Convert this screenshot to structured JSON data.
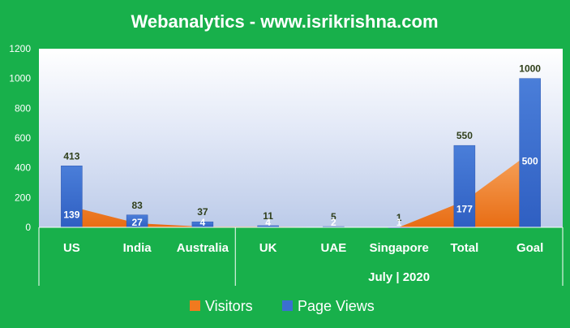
{
  "chart_data": {
    "type": "bar",
    "title": "Webanalytics  - www.isrikrishna.com",
    "categories": [
      "US",
      "India",
      "Australia",
      "UK",
      "UAE",
      "Singapore",
      "Total",
      "Goal"
    ],
    "group_label": "July | 2020",
    "series": [
      {
        "name": "Visitors",
        "type": "area",
        "color": "#f07a1f",
        "values": [
          139,
          27,
          4,
          4,
          2,
          1,
          177,
          500
        ]
      },
      {
        "name": "Page Views",
        "type": "bar",
        "color": "#3b6fd0",
        "values": [
          413,
          83,
          37,
          11,
          5,
          1,
          550,
          1000
        ]
      }
    ],
    "ylim": [
      0,
      1200
    ],
    "yticks": [
      0,
      200,
      400,
      600,
      800,
      1000,
      1200
    ],
    "grid": false,
    "legend_position": "bottom"
  }
}
